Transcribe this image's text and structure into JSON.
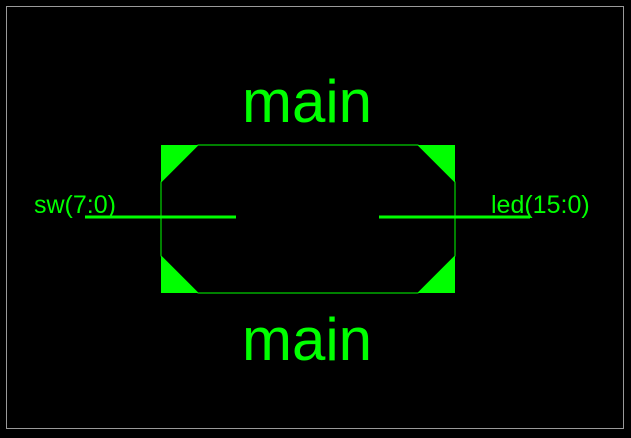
{
  "colors": {
    "background": "#000000",
    "symbol": "#00ff00",
    "frame": "#9a9a9a"
  },
  "symbol": {
    "name_top": "main",
    "name_bottom": "main"
  },
  "ports": {
    "input": {
      "label": "sw(7:0)"
    },
    "output": {
      "label": "led(15:0)"
    }
  }
}
